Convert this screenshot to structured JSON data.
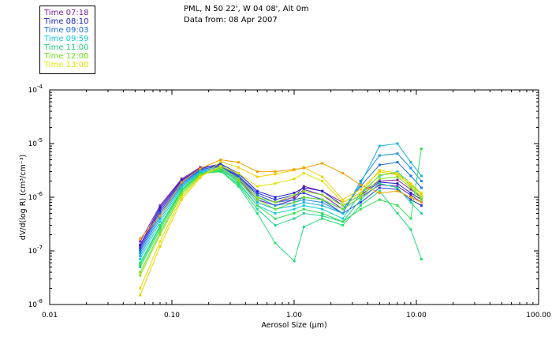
{
  "header": {
    "location": "PML, N 50 22', W 04 08', Alt 0m",
    "data_date": "Data from: 08 Apr 2007"
  },
  "legend": [
    {
      "label": "Time 07:18",
      "color": "#7d1d9a"
    },
    {
      "label": "Time 08:10",
      "color": "#1e22c8"
    },
    {
      "label": "Time 09:03",
      "color": "#1a6fe0"
    },
    {
      "label": "Time 09:59",
      "color": "#14c7d6"
    },
    {
      "label": "Time 11:00",
      "color": "#1fd07a"
    },
    {
      "label": "Time 12:00",
      "color": "#6fe218"
    },
    {
      "label": "Time 13:00",
      "color": "#e3e600"
    }
  ],
  "chart_data": {
    "type": "line",
    "title": "",
    "xlabel": "Aerosol Size (µm)",
    "ylabel": "dV/d(log R) (cm³/cm⁻³)",
    "xscale": "log",
    "yscale": "log",
    "xlim": [
      0.01,
      100
    ],
    "ylim": [
      1e-08,
      0.0001
    ],
    "x_tick_labels": [
      "0.01",
      "0.10",
      "1.00",
      "10.00",
      "100.00"
    ],
    "y_tick_labels": [
      {
        "base": "10",
        "exp": "-8"
      },
      {
        "base": "10",
        "exp": "-7"
      },
      {
        "base": "10",
        "exp": "-6"
      },
      {
        "base": "10",
        "exp": "-5"
      },
      {
        "base": "10",
        "exp": "-4"
      }
    ],
    "x": [
      0.055,
      0.08,
      0.12,
      0.17,
      0.25,
      0.35,
      0.5,
      0.7,
      1.0,
      1.2,
      1.7,
      2.5,
      3.5,
      5.0,
      7.0,
      9.0,
      11.0
    ],
    "series": [
      {
        "name": "07:18 a",
        "color": "#8a1fa0",
        "values": [
          1.5e-07,
          7e-07,
          2.2e-06,
          3.6e-06,
          3.9e-06,
          2.4e-06,
          1.1e-06,
          8e-07,
          1e-06,
          1.6e-06,
          1.3e-06,
          8e-07,
          1.2e-06,
          2e-06,
          2.1e-06,
          1.4e-06,
          1e-06
        ]
      },
      {
        "name": "07:18 b",
        "color": "#6a1cc0",
        "values": [
          1.2e-07,
          6e-07,
          2e-06,
          3.5e-06,
          4.1e-06,
          2.2e-06,
          9e-07,
          7e-07,
          9e-07,
          1.4e-06,
          1.1e-06,
          6e-07,
          1e-06,
          1.7e-06,
          1.6e-06,
          1.1e-06,
          8e-07
        ]
      },
      {
        "name": "08:10 a",
        "color": "#2020d0",
        "values": [
          1.3e-07,
          6.5e-07,
          2.1e-06,
          3.4e-06,
          4.2e-06,
          2.8e-06,
          1.3e-06,
          1e-06,
          1.2e-06,
          1.5e-06,
          1.3e-06,
          7e-07,
          1.1e-06,
          1.9e-06,
          1.8e-06,
          1.2e-06,
          9e-07
        ]
      },
      {
        "name": "08:10 b",
        "color": "#2a3ae0",
        "values": [
          1.1e-07,
          5.5e-07,
          1.9e-06,
          3.3e-06,
          3.8e-06,
          2.5e-06,
          1.2e-06,
          9e-07,
          1.1e-06,
          1.2e-06,
          9e-07,
          5e-07,
          8e-07,
          1.5e-06,
          1.4e-06,
          9e-07,
          7e-07
        ]
      },
      {
        "name": "09:03 a",
        "color": "#1a70e0",
        "values": [
          1e-07,
          5e-07,
          1.8e-06,
          3.2e-06,
          4e-06,
          2.6e-06,
          1.1e-06,
          8e-07,
          9e-07,
          1e-06,
          9e-07,
          6e-07,
          1.6e-06,
          4e-06,
          4.5e-06,
          2.5e-06,
          1.5e-06
        ]
      },
      {
        "name": "09:03 b",
        "color": "#1a90e8",
        "values": [
          9e-08,
          4.5e-07,
          1.7e-06,
          3.1e-06,
          3.7e-06,
          2.3e-06,
          1e-06,
          7e-07,
          8e-07,
          9e-07,
          8e-07,
          5e-07,
          2e-06,
          6e-06,
          6.5e-06,
          3.5e-06,
          2e-06
        ]
      },
      {
        "name": "09:59 a",
        "color": "#18b0e0",
        "values": [
          8e-08,
          4e-07,
          1.6e-06,
          3e-06,
          3.5e-06,
          2.1e-06,
          8e-07,
          6e-07,
          7e-07,
          8e-07,
          7e-07,
          5e-07,
          1.8e-06,
          9e-06,
          1e-05,
          4.5e-06,
          2.5e-06
        ]
      },
      {
        "name": "09:59 b",
        "color": "#14cdd0",
        "values": [
          7e-08,
          3.5e-07,
          1.5e-06,
          2.9e-06,
          3.3e-06,
          1.9e-06,
          7e-07,
          5e-07,
          6e-07,
          7e-07,
          6e-07,
          4e-07,
          1.2e-06,
          2.5e-06,
          3e-06,
          1.8e-06,
          1.1e-06
        ]
      },
      {
        "name": "11:00 a",
        "color": "#20d890",
        "values": [
          6e-08,
          3e-07,
          1.4e-06,
          2.8e-06,
          3.2e-06,
          1.7e-06,
          6e-07,
          3e-07,
          4e-07,
          5e-07,
          4.5e-07,
          3.5e-07,
          9e-07,
          1.8e-06,
          1.5e-06,
          8e-07,
          5e-07
        ]
      },
      {
        "name": "11:00 b",
        "color": "#20e070",
        "values": [
          5e-08,
          2.5e-07,
          1.3e-06,
          2.7e-06,
          3.1e-06,
          1.6e-06,
          5e-07,
          1.4e-07,
          6.5e-08,
          2.8e-07,
          4e-07,
          3e-07,
          7e-07,
          1.3e-06,
          5e-07,
          2.5e-07,
          7e-08
        ]
      },
      {
        "name": "11:00 c",
        "color": "#30e050",
        "values": [
          5.5e-08,
          2.8e-07,
          1.35e-06,
          2.75e-06,
          3e-06,
          1.8e-06,
          7e-07,
          4e-07,
          5e-07,
          6e-07,
          5e-07,
          3.5e-07,
          6e-07,
          9e-07,
          7e-07,
          4e-07,
          8e-06
        ]
      },
      {
        "name": "12:00 a",
        "color": "#70e020",
        "values": [
          4e-08,
          2.2e-07,
          1.2e-06,
          2.6e-06,
          3.4e-06,
          2e-06,
          9e-07,
          6e-07,
          8e-07,
          1e-06,
          9e-07,
          6e-07,
          1e-06,
          2.2e-06,
          2.4e-06,
          1.5e-06,
          9e-07
        ]
      },
      {
        "name": "12:00 b",
        "color": "#90e018",
        "values": [
          3.5e-08,
          2e-07,
          1.1e-06,
          2.5e-06,
          3.6e-06,
          2.2e-06,
          1e-06,
          8e-07,
          1.1e-06,
          1.3e-06,
          1.1e-06,
          7e-07,
          1.1e-06,
          2.6e-06,
          2.8e-06,
          1.6e-06,
          1e-06
        ]
      },
      {
        "name": "13:00 a",
        "color": "#e0e000",
        "values": [
          2e-08,
          1.5e-07,
          1e-06,
          2.4e-06,
          3.8e-06,
          2.8e-06,
          1.6e-06,
          1.8e-06,
          2.2e-06,
          2.8e-06,
          2e-06,
          8e-07,
          1.2e-06,
          3.2e-06,
          2.8e-06,
          1.8e-06,
          1.2e-06
        ]
      },
      {
        "name": "13:00 b",
        "color": "#f0d000",
        "values": [
          1.5e-08,
          1.2e-07,
          9e-07,
          2.3e-06,
          4.6e-06,
          3.6e-06,
          2.4e-06,
          2.7e-06,
          3.2e-06,
          3.6e-06,
          2.4e-06,
          9e-07,
          1.4e-06,
          3e-06,
          2.6e-06,
          1.7e-06,
          1.1e-06
        ]
      },
      {
        "name": "13:00 c",
        "color": "#f5a000",
        "values": [
          1.7e-07,
          4.5e-07,
          1.9e-06,
          3.4e-06,
          5e-06,
          4.5e-06,
          3e-06,
          3e-06,
          3.3e-06,
          3.5e-06,
          4.3e-06,
          2.8e-06,
          1.7e-06,
          1.2e-06,
          1.3e-06,
          1e-06,
          8e-07
        ]
      }
    ]
  }
}
